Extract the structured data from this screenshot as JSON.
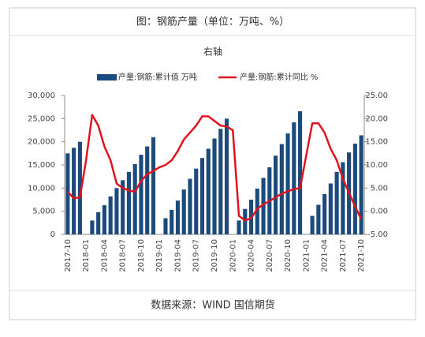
{
  "chart_data": {
    "type": "bar-line",
    "title": "图：钢筋产量（单位：万吨、%）",
    "annotation": "右轴",
    "source": "数据来源：WIND 国信期货",
    "categories": [
      "2017-10",
      null,
      null,
      "2018-01",
      null,
      null,
      "2018-04",
      null,
      null,
      "2018-07",
      null,
      null,
      "2018-10",
      null,
      null,
      "2019-01",
      null,
      null,
      "2019-04",
      null,
      null,
      "2019-07",
      null,
      null,
      "2019-10",
      null,
      null,
      "2020-01",
      null,
      null,
      "2020-04",
      null,
      null,
      "2020-07",
      null,
      null,
      "2020-10",
      null,
      null,
      "2021-01",
      null,
      null,
      "2021-04",
      null,
      null,
      "2021-07",
      null,
      null,
      "2021-10"
    ],
    "series": [
      {
        "name": "产量:钢筋:累计值 万吨",
        "color": "#1b4a7c",
        "type": "bar",
        "values": [
          17500,
          18700,
          20000,
          null,
          3000,
          4800,
          6300,
          8200,
          10000,
          11700,
          13500,
          15200,
          17200,
          19000,
          21000,
          null,
          3500,
          5300,
          7300,
          9700,
          12000,
          14200,
          16500,
          18500,
          20700,
          22800,
          25000,
          null,
          3000,
          5500,
          7500,
          9900,
          12200,
          14500,
          17000,
          19500,
          21800,
          24200,
          26600,
          null,
          4000,
          6400,
          8700,
          11000,
          13500,
          15600,
          17700,
          19600,
          21400
        ]
      },
      {
        "name": "产量:钢筋:累计同比 %",
        "color": "#e0141e",
        "type": "line",
        "axis": "y2",
        "values": [
          4.2,
          2.8,
          3.0,
          11,
          20.8,
          18.5,
          14,
          11,
          6,
          5,
          4.5,
          4.2,
          6.5,
          8,
          8.7,
          9.5,
          10,
          11,
          13,
          15.5,
          17,
          18.5,
          20.5,
          20.5,
          19.5,
          18.5,
          18.3,
          17.5,
          -1,
          -2,
          -1.5,
          0.5,
          1.5,
          2.2,
          3,
          3.8,
          4.3,
          4.8,
          5,
          12,
          19,
          19,
          17,
          13.5,
          11,
          7,
          4,
          1,
          -1.7
        ]
      }
    ],
    "ylim": [
      0,
      30000
    ],
    "yticks": [
      0,
      {
        "value": 5000,
        "label": "5,000"
      },
      {
        "value": 10000,
        "label": "10,000"
      },
      {
        "value": 15000,
        "label": "15,000"
      },
      {
        "value": 20000,
        "label": "20,000"
      },
      {
        "value": 25000,
        "label": "25,000"
      },
      {
        "value": 30000,
        "label": "30,000"
      }
    ],
    "y2lim": [
      -5,
      25
    ],
    "y2ticks": [
      {
        "value": -5,
        "label": "-5.00"
      },
      {
        "value": 0,
        "label": "0.00"
      },
      {
        "value": 5,
        "label": "5.00"
      },
      {
        "value": 10,
        "label": "10.00"
      },
      {
        "value": 15,
        "label": "15.00"
      },
      {
        "value": 20,
        "label": "20.00"
      },
      {
        "value": 25,
        "label": "25.00"
      }
    ]
  }
}
